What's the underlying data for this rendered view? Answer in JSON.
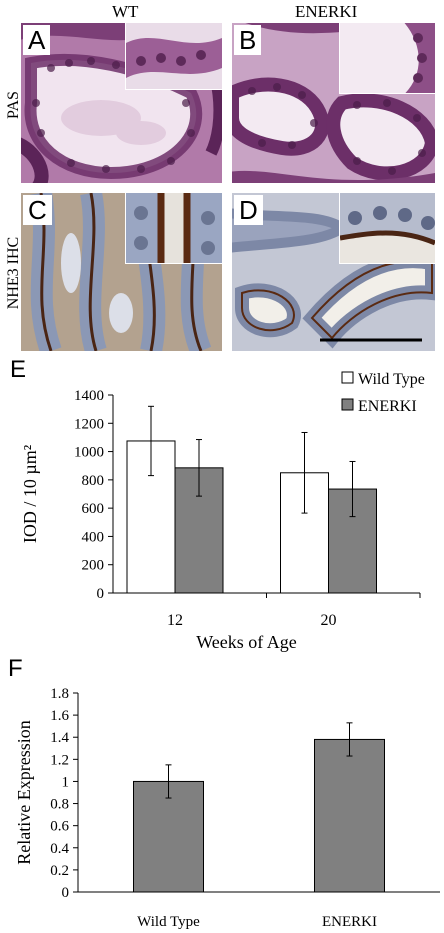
{
  "columns": {
    "left": "WT",
    "right": "ENERKI"
  },
  "rows": {
    "top": "PAS",
    "bottom": "NHE3 IHC"
  },
  "panels": {
    "a": "A",
    "b": "B",
    "c": "C",
    "d": "D"
  },
  "colors": {
    "wild_type": "#ffffff",
    "enerki": "#808080",
    "pas_stain": "#8a4f8a",
    "ihc_stain": "#6b3a1f",
    "ihc_bg": "#a9b3c6"
  },
  "figure_e": {
    "letter": "E",
    "chart_data": {
      "type": "bar",
      "categories": [
        "12",
        "20"
      ],
      "series": [
        {
          "name": "Wild Type",
          "values": [
            1075,
            850
          ],
          "errors": [
            245,
            285
          ]
        },
        {
          "name": "ENERKI",
          "values": [
            885,
            735
          ],
          "errors": [
            200,
            195
          ]
        }
      ],
      "xlabel": "Weeks of Age",
      "ylabel": "IOD / 10 µm²",
      "ylim": [
        0,
        1400
      ],
      "yticks": [
        "0",
        "200",
        "400",
        "600",
        "800",
        "1000",
        "1200",
        "1400"
      ],
      "legend": "top-right",
      "grid": false
    }
  },
  "figure_f": {
    "letter": "F",
    "chart_data": {
      "type": "bar",
      "categories": [
        "Wild Type",
        "ENERKI"
      ],
      "values": [
        1.0,
        1.38
      ],
      "errors": [
        0.15,
        0.15
      ],
      "ylabel": "Relative Expression",
      "ylim": [
        0,
        1.8
      ],
      "yticks": [
        "0",
        "0.2",
        "0.4",
        "0.6",
        "0.8",
        "1",
        "1.2",
        "1.4",
        "1.6",
        "1.8"
      ],
      "grid": false
    }
  }
}
